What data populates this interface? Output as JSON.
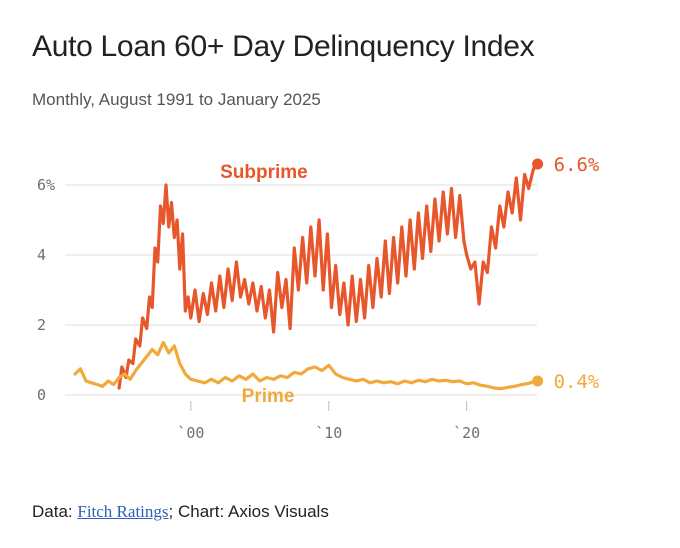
{
  "header": {
    "title": "Auto Loan 60+ Day Delinquency Index",
    "subtitle": "Monthly, August 1991 to January 2025"
  },
  "footer": {
    "prefix": "Data: ",
    "source_link": "Fitch Ratings",
    "suffix": "; Chart: Axios Visuals"
  },
  "colors": {
    "subprime": "#e8562b",
    "prime": "#f2a93b",
    "grid": "#dddddd",
    "tick_text": "#6f6f6f"
  },
  "chart_data": {
    "type": "line",
    "title": "Auto Loan 60+ Day Delinquency Index",
    "xlim": [
      1991.6,
      2025.1
    ],
    "ylim": [
      0,
      7
    ],
    "y_ticks": [
      {
        "value": 0,
        "label": "0"
      },
      {
        "value": 2,
        "label": "2"
      },
      {
        "value": 4,
        "label": "4"
      },
      {
        "value": 6,
        "label": "6%"
      }
    ],
    "x_ticks": [
      {
        "value": 2000,
        "label": "`00"
      },
      {
        "value": 2010,
        "label": "`10"
      },
      {
        "value": 2020,
        "label": "`20"
      }
    ],
    "series": [
      {
        "name": "Subprime",
        "color": "#e8562b",
        "end_label": "6.6%",
        "x": [
          1994.8,
          1995.0,
          1995.3,
          1995.5,
          1995.8,
          1996.0,
          1996.3,
          1996.5,
          1996.8,
          1997.0,
          1997.2,
          1997.4,
          1997.6,
          1997.8,
          1998.0,
          1998.2,
          1998.4,
          1998.6,
          1998.8,
          1999.0,
          1999.2,
          1999.4,
          1999.6,
          1999.8,
          2000.0,
          2000.3,
          2000.6,
          2000.9,
          2001.2,
          2001.5,
          2001.8,
          2002.1,
          2002.4,
          2002.7,
          2003.0,
          2003.3,
          2003.6,
          2003.9,
          2004.2,
          2004.5,
          2004.8,
          2005.1,
          2005.4,
          2005.7,
          2006.0,
          2006.3,
          2006.6,
          2006.9,
          2007.2,
          2007.5,
          2007.8,
          2008.1,
          2008.4,
          2008.7,
          2009.0,
          2009.3,
          2009.6,
          2009.9,
          2010.2,
          2010.5,
          2010.8,
          2011.1,
          2011.4,
          2011.7,
          2012.0,
          2012.3,
          2012.6,
          2012.9,
          2013.2,
          2013.5,
          2013.8,
          2014.1,
          2014.4,
          2014.7,
          2015.0,
          2015.3,
          2015.6,
          2015.9,
          2016.2,
          2016.5,
          2016.8,
          2017.1,
          2017.4,
          2017.7,
          2018.0,
          2018.3,
          2018.6,
          2018.9,
          2019.2,
          2019.5,
          2019.8,
          2020.0,
          2020.3,
          2020.6,
          2020.9,
          2021.2,
          2021.5,
          2021.8,
          2022.1,
          2022.4,
          2022.7,
          2023.0,
          2023.3,
          2023.6,
          2023.9,
          2024.2,
          2024.5,
          2024.8,
          2025.0
        ],
        "values": [
          0.2,
          0.8,
          0.5,
          1.0,
          0.9,
          1.6,
          1.4,
          2.2,
          1.9,
          2.8,
          2.5,
          4.2,
          3.8,
          5.4,
          4.9,
          6.0,
          4.8,
          5.5,
          4.5,
          5.0,
          3.6,
          4.6,
          2.4,
          2.8,
          2.2,
          3.0,
          2.1,
          2.9,
          2.3,
          3.2,
          2.4,
          3.4,
          2.5,
          3.6,
          2.7,
          3.8,
          2.8,
          3.3,
          2.6,
          3.2,
          2.4,
          3.1,
          2.2,
          3.0,
          1.8,
          3.5,
          2.5,
          3.3,
          1.9,
          4.2,
          3.0,
          4.5,
          3.2,
          4.8,
          3.4,
          5.0,
          3.0,
          4.6,
          2.5,
          3.7,
          2.3,
          3.2,
          2.0,
          3.4,
          2.1,
          3.3,
          2.2,
          3.7,
          2.5,
          3.9,
          2.8,
          4.4,
          2.9,
          4.5,
          3.2,
          4.8,
          3.4,
          5.0,
          3.6,
          5.2,
          3.9,
          5.4,
          4.1,
          5.6,
          4.4,
          5.8,
          4.6,
          5.9,
          4.5,
          5.7,
          4.4,
          4.0,
          3.6,
          3.8,
          2.6,
          3.8,
          3.5,
          4.8,
          4.2,
          5.4,
          4.8,
          5.8,
          5.2,
          6.2,
          5.0,
          6.3,
          5.9,
          6.4,
          6.6
        ]
      },
      {
        "name": "Prime",
        "color": "#f2a93b",
        "end_label": "0.4%",
        "x": [
          1991.6,
          1992.0,
          1992.4,
          1992.8,
          1993.2,
          1993.6,
          1994.0,
          1994.4,
          1994.8,
          1995.2,
          1995.6,
          1996.0,
          1996.4,
          1996.8,
          1997.2,
          1997.6,
          1998.0,
          1998.4,
          1998.8,
          1999.2,
          1999.6,
          2000.0,
          2000.5,
          2001.0,
          2001.5,
          2002.0,
          2002.5,
          2003.0,
          2003.5,
          2004.0,
          2004.5,
          2005.0,
          2005.5,
          2006.0,
          2006.5,
          2007.0,
          2007.5,
          2008.0,
          2008.5,
          2009.0,
          2009.5,
          2010.0,
          2010.5,
          2011.0,
          2011.5,
          2012.0,
          2012.5,
          2013.0,
          2013.5,
          2014.0,
          2014.5,
          2015.0,
          2015.5,
          2016.0,
          2016.5,
          2017.0,
          2017.5,
          2018.0,
          2018.5,
          2019.0,
          2019.5,
          2020.0,
          2020.5,
          2021.0,
          2021.5,
          2022.0,
          2022.5,
          2023.0,
          2023.5,
          2024.0,
          2024.5,
          2025.0
        ],
        "values": [
          0.6,
          0.75,
          0.4,
          0.35,
          0.3,
          0.25,
          0.4,
          0.3,
          0.5,
          0.6,
          0.45,
          0.7,
          0.9,
          1.1,
          1.3,
          1.15,
          1.5,
          1.2,
          1.4,
          0.9,
          0.6,
          0.45,
          0.4,
          0.35,
          0.45,
          0.35,
          0.5,
          0.4,
          0.55,
          0.45,
          0.6,
          0.4,
          0.5,
          0.45,
          0.55,
          0.5,
          0.65,
          0.6,
          0.75,
          0.8,
          0.7,
          0.85,
          0.6,
          0.5,
          0.45,
          0.4,
          0.45,
          0.35,
          0.4,
          0.35,
          0.38,
          0.32,
          0.4,
          0.35,
          0.42,
          0.38,
          0.45,
          0.4,
          0.42,
          0.38,
          0.4,
          0.32,
          0.35,
          0.28,
          0.25,
          0.2,
          0.18,
          0.22,
          0.25,
          0.3,
          0.33,
          0.4
        ]
      }
    ]
  }
}
